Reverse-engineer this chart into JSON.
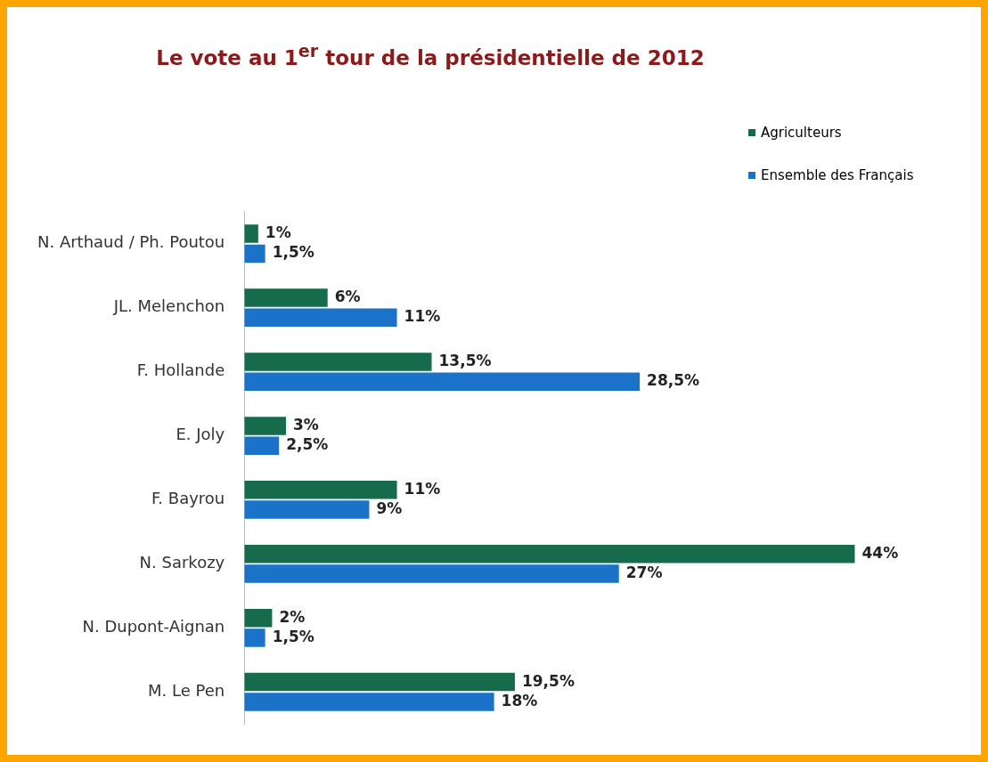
{
  "chart_data": {
    "type": "bar",
    "orientation": "horizontal",
    "title": "Le vote au 1$^{er}$ tour de la présidentielle de 2012",
    "categories": [
      "N. Arthaud / Ph. Poutou",
      "JL. Melenchon",
      "F. Hollande",
      "E. Joly",
      "F. Bayrou",
      "N. Sarkozy",
      "N. Dupont-Aignan",
      "M. Le Pen"
    ],
    "series": [
      {
        "name": "Agriculteurs",
        "color": "#176b4d",
        "values": [
          1,
          6,
          13.5,
          3,
          11,
          44,
          2,
          19.5
        ],
        "value_labels": [
          "1%",
          "6%",
          "13,5%",
          "3%",
          "11%",
          "44%",
          "2%",
          "19,5%"
        ]
      },
      {
        "name": "Ensemble des Français",
        "color": "#1a73c9",
        "values": [
          1.5,
          11,
          28.5,
          2.5,
          9,
          27,
          1.5,
          18
        ],
        "value_labels": [
          "1,5%",
          "11%",
          "28,5%",
          "2,5%",
          "9%",
          "27%",
          "1,5%",
          "18%"
        ]
      }
    ],
    "legend": "top right"
  }
}
